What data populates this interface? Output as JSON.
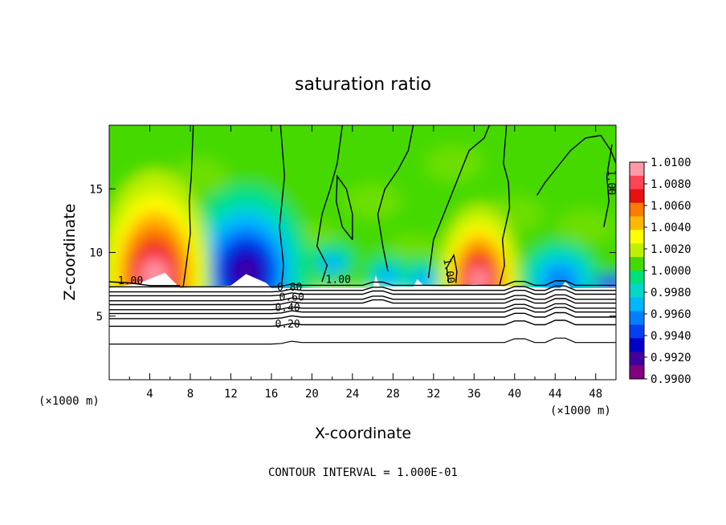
{
  "chart_data": {
    "type": "heatmap",
    "title": "saturation ratio",
    "xlabel": "X-coordinate",
    "ylabel": "Z-coordinate",
    "x_unit": "(×1000 m)",
    "footer": "CONTOUR INTERVAL = 1.000E-01",
    "xlim": [
      0,
      50
    ],
    "ylim": [
      0,
      20
    ],
    "x_ticks": [
      4,
      8,
      12,
      16,
      20,
      24,
      28,
      32,
      36,
      40,
      44,
      48
    ],
    "y_ticks": [
      5,
      10,
      15
    ],
    "colorbar": {
      "labels": [
        "1.0100",
        "1.0080",
        "1.0060",
        "1.0040",
        "1.0020",
        "1.0000",
        "0.9980",
        "0.9960",
        "0.9940",
        "0.9920",
        "0.9900"
      ],
      "colors": [
        "#ff99a8",
        "#ff4455",
        "#e81010",
        "#ff7a00",
        "#ffb800",
        "#ffff00",
        "#bff000",
        "#44d900",
        "#00e07a",
        "#00d8c8",
        "#00b8ff",
        "#0080ff",
        "#0040f0",
        "#0000c8",
        "#4000a0",
        "#800080"
      ],
      "range": [
        0.99,
        1.01
      ]
    },
    "contour_labels": [
      {
        "text": "1.00",
        "x": 2.1,
        "z": 7.5
      },
      {
        "text": "1.00",
        "x": 22.6,
        "z": 7.6
      },
      {
        "text": "1.00",
        "x": 33.2,
        "z": 8.5
      },
      {
        "text": "1.00",
        "x": 49.2,
        "z": 15.5
      },
      {
        "text": "0.80",
        "x": 17.8,
        "z": 7.0
      },
      {
        "text": "0.60",
        "x": 18.0,
        "z": 6.2
      },
      {
        "text": "0.40",
        "x": 17.6,
        "z": 5.4
      },
      {
        "text": "0.20",
        "x": 17.6,
        "z": 4.1
      }
    ],
    "features": {
      "cloud_top_z": 7.2,
      "maxima": [
        {
          "x": 4.5,
          "z": 9.5,
          "peak": 1.008
        },
        {
          "x": 36.5,
          "z": 8.5,
          "peak": 1.006
        }
      ],
      "minima": [
        {
          "x": 13.5,
          "z": 8.5,
          "peak": 0.992
        },
        {
          "x": 44.5,
          "z": 7.8,
          "peak": 0.996
        }
      ]
    }
  }
}
